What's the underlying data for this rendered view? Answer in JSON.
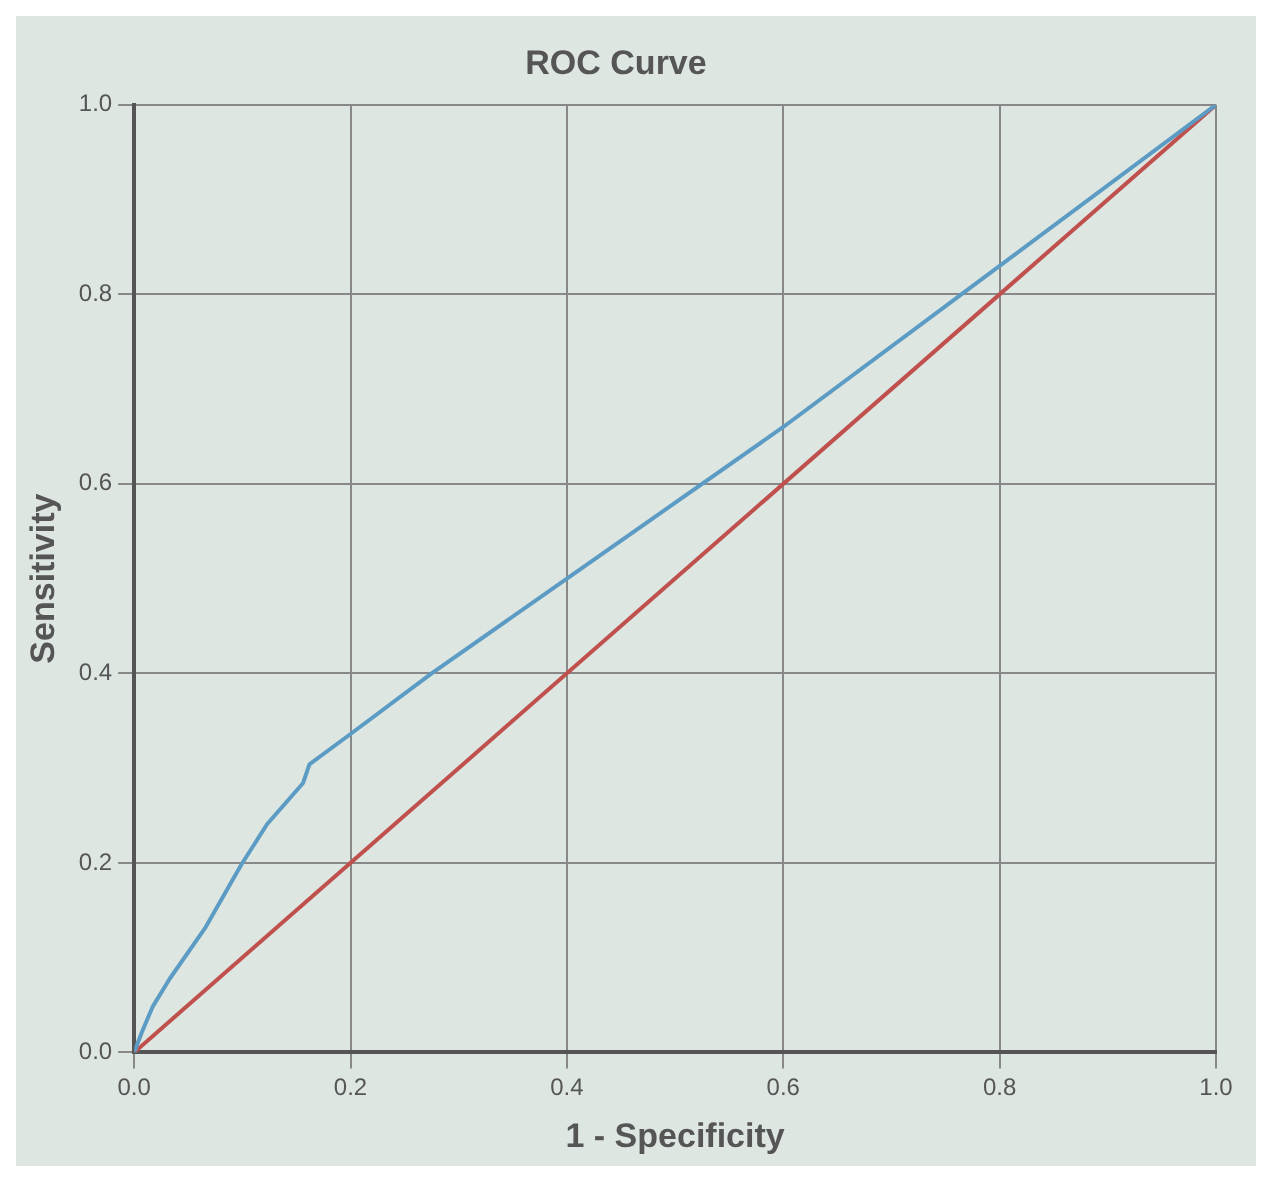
{
  "chart_data": {
    "type": "line",
    "title": "ROC Curve",
    "xlabel": "1 - Specificity",
    "ylabel": "Sensitivity",
    "xlim": [
      0,
      1
    ],
    "ylim": [
      0,
      1
    ],
    "xticks": [
      {
        "value": 0,
        "label": "0.0"
      },
      {
        "value": 0.2,
        "label": "0.2"
      },
      {
        "value": 0.4,
        "label": "0.4"
      },
      {
        "value": 0.6,
        "label": "0.6"
      },
      {
        "value": 0.8,
        "label": "0.8"
      },
      {
        "value": 1,
        "label": "1.0"
      }
    ],
    "yticks": [
      {
        "value": 0,
        "label": "0.0"
      },
      {
        "value": 0.2,
        "label": "0.2"
      },
      {
        "value": 0.4,
        "label": "0.4"
      },
      {
        "value": 0.6,
        "label": "0.6"
      },
      {
        "value": 0.8,
        "label": "0.8"
      },
      {
        "value": 1,
        "label": "1.0"
      }
    ],
    "grid": true,
    "legend": false,
    "marker": "none",
    "line_style": "solid",
    "series": [
      {
        "color": "#5b9bc4",
        "x": [
          0,
          0.007,
          0.017,
          0.033,
          0.066,
          0.099,
          0.123,
          0.156,
          0.162,
          0.2,
          0.275,
          0.4,
          0.6,
          0.8,
          1
        ],
        "values": [
          0,
          0.021,
          0.048,
          0.078,
          0.132,
          0.198,
          0.241,
          0.284,
          0.304,
          0.336,
          0.4,
          0.5,
          0.66,
          0.83,
          1
        ]
      },
      {
        "color": "#c0504d",
        "x": [
          0,
          1
        ],
        "values": [
          0,
          1
        ]
      }
    ]
  }
}
